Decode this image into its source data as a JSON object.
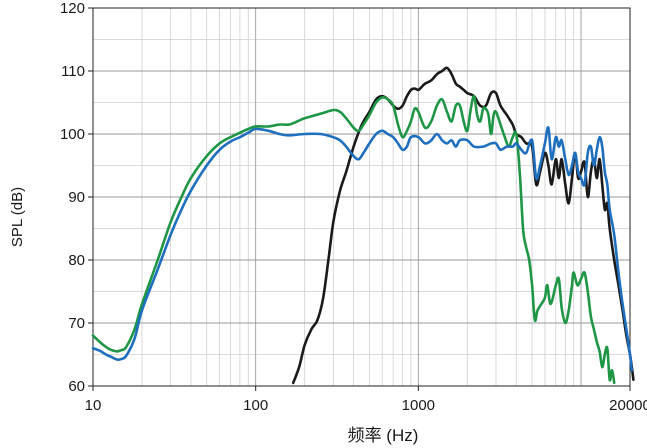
{
  "chart_data": {
    "type": "line",
    "title": "",
    "xlabel": "频率 (Hz)",
    "ylabel": "SPL (dB)",
    "x_scale": "log",
    "xlim": [
      10,
      20000
    ],
    "ylim": [
      60,
      120
    ],
    "x_ticks": [
      10,
      100,
      1000,
      20000
    ],
    "y_ticks": [
      60,
      70,
      80,
      90,
      100,
      110,
      120
    ],
    "grid": true,
    "legend": "none",
    "series": [
      {
        "color": "#1a1a1a",
        "points": [
          [
            170,
            60.5
          ],
          [
            185,
            63
          ],
          [
            200,
            66.5
          ],
          [
            220,
            69
          ],
          [
            240,
            70.5
          ],
          [
            260,
            74
          ],
          [
            280,
            80
          ],
          [
            300,
            86
          ],
          [
            330,
            91
          ],
          [
            360,
            94
          ],
          [
            400,
            98
          ],
          [
            450,
            101.5
          ],
          [
            500,
            103.5
          ],
          [
            550,
            105.5
          ],
          [
            600,
            106
          ],
          [
            650,
            105.5
          ],
          [
            700,
            104.5
          ],
          [
            750,
            104
          ],
          [
            800,
            104.5
          ],
          [
            850,
            106
          ],
          [
            900,
            107
          ],
          [
            950,
            107.2
          ],
          [
            1000,
            107
          ],
          [
            1050,
            107.5
          ],
          [
            1100,
            108
          ],
          [
            1200,
            108.5
          ],
          [
            1300,
            109.5
          ],
          [
            1400,
            110
          ],
          [
            1500,
            110.5
          ],
          [
            1600,
            109.5
          ],
          [
            1700,
            108
          ],
          [
            1800,
            107.5
          ],
          [
            1900,
            107
          ],
          [
            2000,
            106.5
          ],
          [
            2200,
            106
          ],
          [
            2400,
            104.5
          ],
          [
            2600,
            104.5
          ],
          [
            2800,
            106.5
          ],
          [
            3000,
            106.5
          ],
          [
            3200,
            104.5
          ],
          [
            3500,
            103
          ],
          [
            3800,
            101.5
          ],
          [
            4000,
            100
          ],
          [
            4300,
            99.5
          ],
          [
            4600,
            98.5
          ],
          [
            5000,
            98
          ],
          [
            5300,
            92
          ],
          [
            5600,
            94
          ],
          [
            6000,
            97
          ],
          [
            6300,
            95
          ],
          [
            6600,
            92
          ],
          [
            7000,
            96
          ],
          [
            7300,
            93
          ],
          [
            7600,
            96
          ],
          [
            8000,
            92
          ],
          [
            8400,
            89
          ],
          [
            8800,
            93
          ],
          [
            9200,
            97
          ],
          [
            9600,
            93
          ],
          [
            10000,
            94
          ],
          [
            10500,
            95.5
          ],
          [
            11000,
            90
          ],
          [
            11500,
            94
          ],
          [
            12000,
            96
          ],
          [
            12500,
            93
          ],
          [
            13000,
            96
          ],
          [
            13500,
            92
          ],
          [
            14000,
            88
          ],
          [
            14500,
            89
          ],
          [
            15000,
            85
          ],
          [
            16000,
            80
          ],
          [
            17000,
            76
          ],
          [
            18000,
            72
          ],
          [
            19000,
            68
          ],
          [
            20000,
            65
          ],
          [
            21000,
            61
          ]
        ]
      },
      {
        "color": "#1e9646",
        "points": [
          [
            10,
            68
          ],
          [
            11,
            67
          ],
          [
            12,
            66.2
          ],
          [
            13,
            65.7
          ],
          [
            14,
            65.5
          ],
          [
            15,
            65.7
          ],
          [
            16,
            66.2
          ],
          [
            18,
            69
          ],
          [
            20,
            73
          ],
          [
            25,
            80
          ],
          [
            30,
            86
          ],
          [
            35,
            90
          ],
          [
            40,
            93
          ],
          [
            50,
            96.5
          ],
          [
            60,
            98.5
          ],
          [
            70,
            99.5
          ],
          [
            80,
            100.2
          ],
          [
            90,
            100.8
          ],
          [
            100,
            101.2
          ],
          [
            120,
            101.2
          ],
          [
            140,
            101.5
          ],
          [
            160,
            101.5
          ],
          [
            180,
            102
          ],
          [
            200,
            102.5
          ],
          [
            250,
            103.2
          ],
          [
            300,
            103.8
          ],
          [
            330,
            103.5
          ],
          [
            360,
            102.5
          ],
          [
            400,
            101
          ],
          [
            430,
            100.5
          ],
          [
            460,
            101.5
          ],
          [
            500,
            103
          ],
          [
            550,
            105
          ],
          [
            600,
            105.8
          ],
          [
            650,
            105.5
          ],
          [
            700,
            104.5
          ],
          [
            750,
            101.5
          ],
          [
            800,
            99.5
          ],
          [
            850,
            100.5
          ],
          [
            900,
            102
          ],
          [
            950,
            104
          ],
          [
            1000,
            103.5
          ],
          [
            1100,
            101
          ],
          [
            1200,
            102
          ],
          [
            1300,
            104.5
          ],
          [
            1400,
            105.5
          ],
          [
            1500,
            103.5
          ],
          [
            1600,
            102
          ],
          [
            1700,
            104.5
          ],
          [
            1800,
            104.5
          ],
          [
            1900,
            102
          ],
          [
            2000,
            100.5
          ],
          [
            2100,
            104
          ],
          [
            2200,
            106
          ],
          [
            2300,
            103
          ],
          [
            2400,
            102
          ],
          [
            2500,
            104
          ],
          [
            2600,
            104
          ],
          [
            2700,
            103
          ],
          [
            2800,
            100
          ],
          [
            2900,
            103
          ],
          [
            3000,
            103.5
          ],
          [
            3200,
            101.5
          ],
          [
            3400,
            99.5
          ],
          [
            3600,
            98
          ],
          [
            3800,
            99.5
          ],
          [
            4000,
            100
          ],
          [
            4200,
            94
          ],
          [
            4400,
            85
          ],
          [
            4600,
            82
          ],
          [
            4800,
            80
          ],
          [
            5000,
            76
          ],
          [
            5200,
            70.5
          ],
          [
            5400,
            72
          ],
          [
            5700,
            73
          ],
          [
            6000,
            74
          ],
          [
            6200,
            76
          ],
          [
            6500,
            73
          ],
          [
            7000,
            76
          ],
          [
            7300,
            77
          ],
          [
            7600,
            72.5
          ],
          [
            8000,
            70
          ],
          [
            8400,
            72
          ],
          [
            8800,
            76
          ],
          [
            9000,
            78
          ],
          [
            9500,
            76
          ],
          [
            10000,
            77
          ],
          [
            10500,
            78
          ],
          [
            11000,
            75
          ],
          [
            11500,
            71
          ],
          [
            12000,
            69
          ],
          [
            12500,
            67
          ],
          [
            13000,
            65.5
          ],
          [
            13500,
            63
          ],
          [
            14000,
            65
          ],
          [
            14500,
            66
          ],
          [
            15000,
            61
          ],
          [
            15500,
            62.5
          ],
          [
            16000,
            60.5
          ]
        ]
      },
      {
        "color": "#1f6fbf",
        "points": [
          [
            10,
            66
          ],
          [
            11,
            65.6
          ],
          [
            12,
            65
          ],
          [
            13,
            64.6
          ],
          [
            14,
            64.2
          ],
          [
            15,
            64.3
          ],
          [
            16,
            64.8
          ],
          [
            18,
            67.5
          ],
          [
            20,
            72
          ],
          [
            25,
            78.5
          ],
          [
            30,
            84
          ],
          [
            35,
            88
          ],
          [
            40,
            91
          ],
          [
            50,
            95
          ],
          [
            60,
            97.5
          ],
          [
            70,
            98.8
          ],
          [
            80,
            99.5
          ],
          [
            90,
            100.2
          ],
          [
            100,
            100.8
          ],
          [
            120,
            100.5
          ],
          [
            140,
            100
          ],
          [
            160,
            99.8
          ],
          [
            200,
            100
          ],
          [
            250,
            100
          ],
          [
            300,
            99.5
          ],
          [
            330,
            99
          ],
          [
            360,
            98
          ],
          [
            400,
            96.5
          ],
          [
            430,
            96
          ],
          [
            460,
            97
          ],
          [
            500,
            98.5
          ],
          [
            550,
            100
          ],
          [
            600,
            100.5
          ],
          [
            650,
            100
          ],
          [
            700,
            99.5
          ],
          [
            750,
            98.5
          ],
          [
            800,
            97.5
          ],
          [
            850,
            98
          ],
          [
            900,
            99.5
          ],
          [
            1000,
            99.5
          ],
          [
            1100,
            98.5
          ],
          [
            1200,
            99
          ],
          [
            1300,
            100
          ],
          [
            1400,
            99
          ],
          [
            1500,
            98.5
          ],
          [
            1600,
            99
          ],
          [
            1700,
            98
          ],
          [
            1800,
            99
          ],
          [
            2000,
            99
          ],
          [
            2200,
            98
          ],
          [
            2500,
            98
          ],
          [
            2800,
            98.5
          ],
          [
            3000,
            98.5
          ],
          [
            3200,
            97.5
          ],
          [
            3500,
            98
          ],
          [
            3800,
            98
          ],
          [
            4000,
            98.5
          ],
          [
            4300,
            97.5
          ],
          [
            4600,
            97
          ],
          [
            5000,
            99
          ],
          [
            5300,
            93
          ],
          [
            5600,
            95
          ],
          [
            6000,
            98.5
          ],
          [
            6300,
            101
          ],
          [
            6600,
            96
          ],
          [
            7000,
            99.5
          ],
          [
            7300,
            98
          ],
          [
            7600,
            99
          ],
          [
            8000,
            96
          ],
          [
            8400,
            93.5
          ],
          [
            8800,
            95
          ],
          [
            9200,
            97
          ],
          [
            9600,
            94
          ],
          [
            10000,
            93
          ],
          [
            10500,
            92
          ],
          [
            11000,
            97
          ],
          [
            11500,
            98
          ],
          [
            12000,
            95
          ],
          [
            12500,
            97.5
          ],
          [
            13000,
            99.5
          ],
          [
            13500,
            98
          ],
          [
            14000,
            94
          ],
          [
            14500,
            92
          ],
          [
            15000,
            88
          ],
          [
            16000,
            84
          ],
          [
            17000,
            78
          ],
          [
            18000,
            73
          ],
          [
            19000,
            69
          ],
          [
            20000,
            65
          ],
          [
            20500,
            62.5
          ]
        ]
      }
    ]
  }
}
